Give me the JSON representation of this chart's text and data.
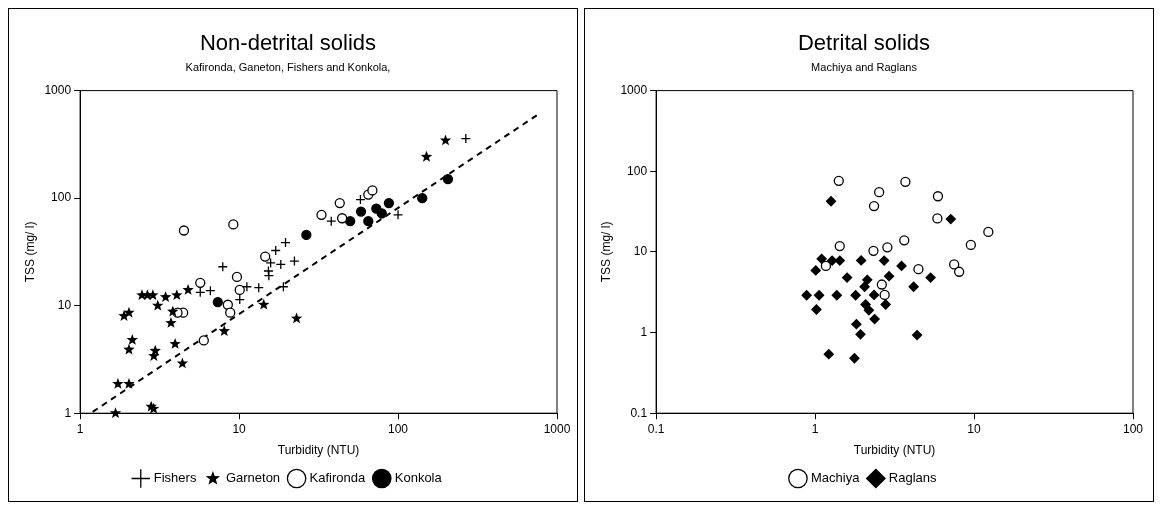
{
  "chart_data": [
    {
      "type": "scatter",
      "title": "Non-detrital solids",
      "subtitle": "Kafironda, Ganeton, Fishers and Konkola,",
      "xlabel": "Turbidity (NTU)",
      "ylabel": "TSS (mg/ l)",
      "log": "xy",
      "grid": false,
      "legend": "bottom",
      "xlim": [
        1,
        1000
      ],
      "ylim": [
        1,
        1000
      ],
      "xticks": [
        1,
        10,
        100,
        1000
      ],
      "yticks": [
        1,
        10,
        100,
        1000
      ],
      "series": [
        {
          "name": "Fishers",
          "color": "#000000",
          "marker": "cross",
          "x": [
            7.9,
            5.7,
            6.6,
            10.1,
            11.2,
            13.3,
            15.8,
            15.3,
            15.4,
            17,
            19.6,
            18.3,
            22.3,
            19,
            38,
            58,
            100,
            267
          ],
          "values": [
            23,
            13.3,
            13.8,
            11.4,
            15,
            14.7,
            25,
            21,
            19,
            32.6,
            38.6,
            24.2,
            26,
            15,
            61,
            97,
            70,
            358
          ]
        },
        {
          "name": "Garneton",
          "color": "#000000",
          "marker": "star",
          "x": [
            1.67,
            2.8,
            2.9,
            1.73,
            2.03,
            2.03,
            2.13,
            1.89,
            2.03,
            2.45,
            2.65,
            2.87,
            3.08,
            3.45,
            4.06,
            4.78,
            2.97,
            2.91,
            3.73,
            3.83,
            3.96,
            4.4,
            8.07,
            14.3,
            23,
            151,
            199
          ],
          "values": [
            1,
            1.15,
            1.1,
            1.87,
            1.87,
            3.9,
            4.8,
            8,
            8.6,
            12.5,
            12.5,
            12.5,
            10,
            12,
            12.5,
            14,
            3.8,
            3.4,
            6.9,
            8.8,
            4.4,
            2.9,
            5.8,
            10.2,
            7.6,
            242,
            344
          ]
        },
        {
          "name": "Kafironda",
          "color": "#ffffff",
          "marker": "circle",
          "x": [
            4.5,
            9.2,
            5.7,
            4.45,
            4.1,
            6,
            8.5,
            8.8,
            9.7,
            10.1,
            14.6,
            33,
            43,
            44.5,
            65,
            69
          ],
          "values": [
            50,
            57,
            16.3,
            8.6,
            8.6,
            4.75,
            10.2,
            8.6,
            18.5,
            14,
            28.6,
            70,
            90,
            65,
            108,
            118
          ]
        },
        {
          "name": "Konkola",
          "color": "#000000",
          "marker": "circle",
          "x": [
            26.5,
            7.35,
            50,
            58.5,
            65,
            73,
            79,
            87.6,
            142,
            206
          ],
          "values": [
            45.5,
            10.8,
            61,
            75,
            61,
            80,
            72,
            90,
            100,
            150
          ]
        },
        {
          "type": "line",
          "color": "#000000",
          "marker": "none",
          "line_style": "dashed",
          "x": [
            1.2,
            760
          ],
          "values": [
            1.03,
            600
          ]
        }
      ]
    },
    {
      "type": "scatter",
      "title": "Detrital solids",
      "subtitle": "Machiya and Raglans",
      "xlabel": "Turbidity (NTU)",
      "ylabel": "TSS (mg/ l)",
      "log": "xy",
      "grid": false,
      "legend": "bottom",
      "xlim": [
        0.1,
        100
      ],
      "ylim": [
        0.1,
        1000
      ],
      "xticks": [
        0.1,
        1,
        10,
        100
      ],
      "yticks": [
        0.1,
        1,
        10,
        100,
        1000
      ],
      "series": [
        {
          "name": "Machiya",
          "color": "#ffffff",
          "marker": "circle",
          "x": [
            1.41,
            3.7,
            2.53,
            2.35,
            5.93,
            5.88,
            12.3,
            9.55,
            1.43,
            3.64,
            2.85,
            2.33,
            1.17,
            4.47,
            7.5,
            8.06,
            2.63,
            2.74
          ],
          "values": [
            76,
            74,
            55,
            37,
            49,
            26,
            17.7,
            12.2,
            11.8,
            13.9,
            11.4,
            10.3,
            6.7,
            6.1,
            7,
            5.67,
            3.94,
            2.93
          ]
        },
        {
          "name": "Raglans",
          "color": "#000000",
          "marker": "diamond",
          "x": [
            1.26,
            7.14,
            1.1,
            1.28,
            1.43,
            1.01,
            1.95,
            2.72,
            3.5,
            1.59,
            2.92,
            5.33,
            2.13,
            2.05,
            2.35,
            4.17,
            0.885,
            1.06,
            1.37,
            1.8,
            2.78,
            1.02,
            2.08,
            2.18,
            2.37,
            1.82,
            1.93,
            4.38,
            1.22,
            1.77
          ],
          "values": [
            42.5,
            25.5,
            8.2,
            7.8,
            7.8,
            5.9,
            7.85,
            7.8,
            6.7,
            4.8,
            5,
            4.8,
            4.5,
            3.7,
            2.93,
            3.7,
            2.9,
            2.9,
            2.9,
            2.9,
            2.23,
            1.93,
            2.23,
            1.89,
            1.47,
            1.27,
            0.95,
            0.93,
            0.54,
            0.48
          ]
        }
      ]
    }
  ]
}
